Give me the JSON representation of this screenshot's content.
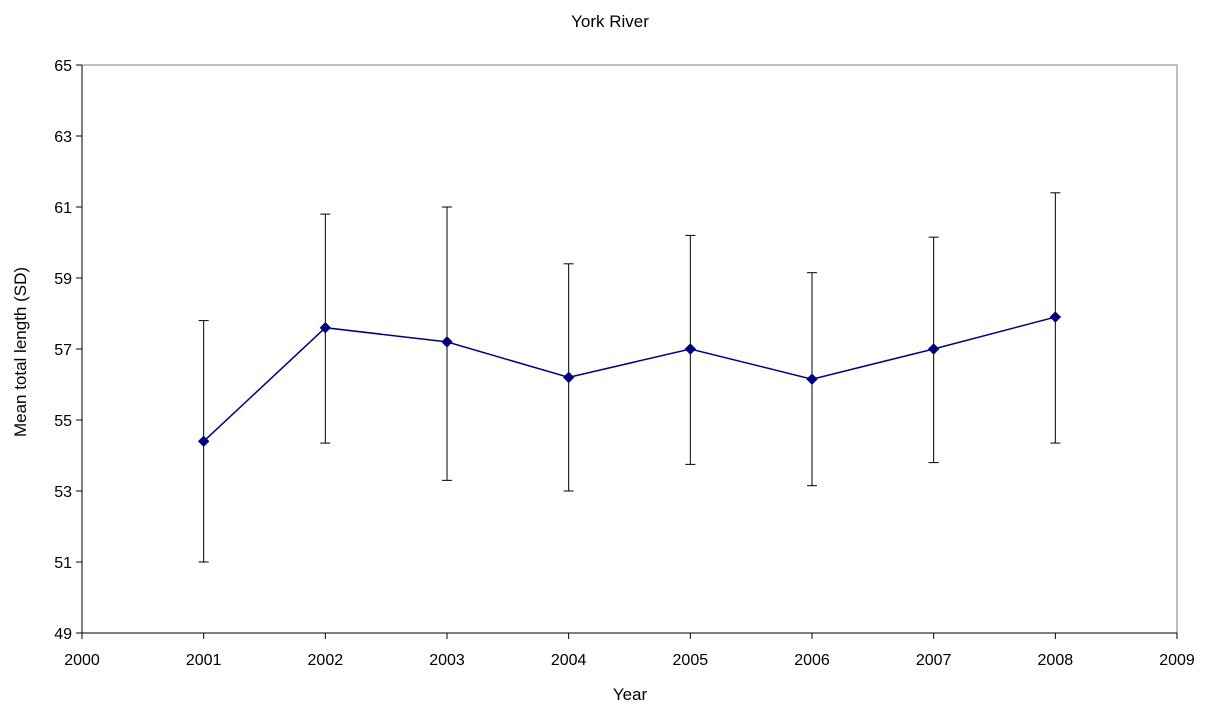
{
  "chart_data": {
    "type": "line",
    "title": "York River",
    "xlabel": "Year",
    "ylabel": "Mean total length (SD)",
    "xlim": [
      2000,
      2009
    ],
    "ylim": [
      49,
      65
    ],
    "xticks": [
      2000,
      2001,
      2002,
      2003,
      2004,
      2005,
      2006,
      2007,
      2008,
      2009
    ],
    "yticks": [
      49,
      51,
      53,
      55,
      57,
      59,
      61,
      63,
      65
    ],
    "grid": false,
    "legend": "none",
    "series": [
      {
        "color": "#000080",
        "marker": "diamond",
        "x": [
          2001,
          2002,
          2003,
          2004,
          2005,
          2006,
          2007,
          2008
        ],
        "y": [
          54.4,
          57.6,
          57.2,
          56.2,
          57.0,
          56.15,
          57.0,
          57.9
        ],
        "error_low": [
          51.0,
          54.35,
          53.3,
          53.0,
          53.75,
          53.15,
          53.8,
          54.35
        ],
        "error_high": [
          57.8,
          60.8,
          61.0,
          59.4,
          60.2,
          59.15,
          60.15,
          61.4
        ]
      }
    ]
  }
}
